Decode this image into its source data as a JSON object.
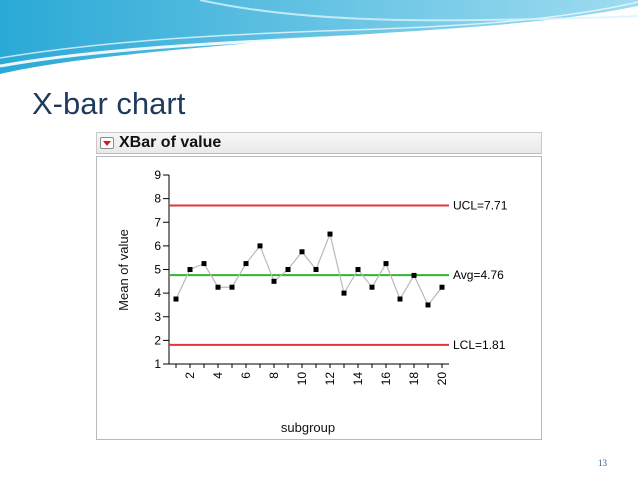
{
  "slide": {
    "title": "X-bar chart",
    "page_number": "13"
  },
  "panel": {
    "title": "XBar of value"
  },
  "chart_data": {
    "type": "line",
    "title": "XBar of value",
    "xlabel": "subgroup",
    "ylabel": "Mean of value",
    "x": [
      1,
      2,
      3,
      4,
      5,
      6,
      7,
      8,
      9,
      10,
      11,
      12,
      13,
      14,
      15,
      16,
      17,
      18,
      19,
      20
    ],
    "series": [
      {
        "values": [
          3.75,
          5.0,
          5.25,
          4.25,
          4.25,
          5.25,
          6.0,
          4.5,
          5.0,
          5.75,
          5.0,
          6.5,
          4.0,
          5.0,
          4.25,
          5.25,
          3.75,
          4.75,
          3.5,
          4.25
        ]
      }
    ],
    "xlim": [
      0.5,
      20.5
    ],
    "ylim": [
      1,
      9
    ],
    "x_ticks": [
      2,
      4,
      6,
      8,
      10,
      12,
      14,
      16,
      18,
      20
    ],
    "x_tick_labels": [
      "2",
      "4",
      "6",
      "8",
      "10",
      "12",
      "14",
      "16",
      "18",
      "20"
    ],
    "y_ticks": [
      1,
      2,
      3,
      4,
      5,
      6,
      7,
      8,
      9
    ],
    "y_tick_labels": [
      "1",
      "2",
      "3",
      "4",
      "5",
      "6",
      "7",
      "8",
      "9"
    ],
    "control_lines": [
      {
        "label": "UCL=7.71",
        "value": 7.71,
        "color": "#e0353b"
      },
      {
        "label": "Avg=4.76",
        "value": 4.76,
        "color": "#33b233"
      },
      {
        "label": "LCL=1.81",
        "value": 1.81,
        "color": "#e0353b"
      }
    ],
    "line_color": "#b9b9b9",
    "marker_color": "#000000",
    "grid": false
  }
}
